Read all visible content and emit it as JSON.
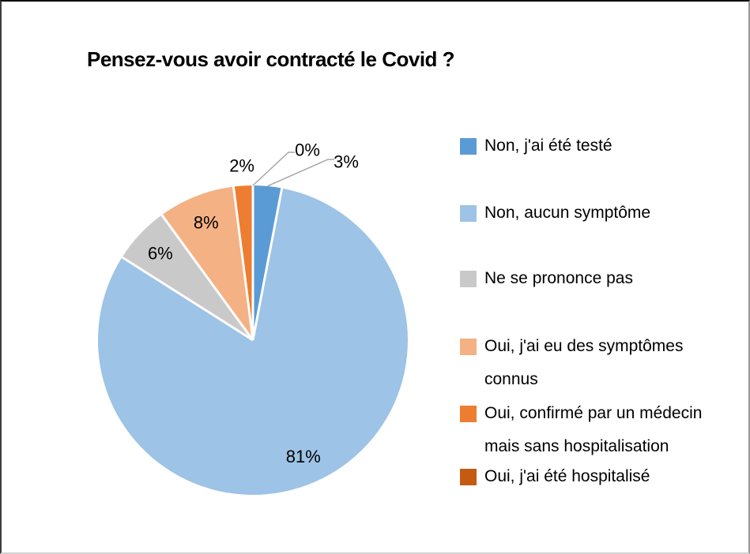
{
  "title": "Pensez-vous avoir contracté le Covid ?",
  "chart_data": {
    "type": "pie",
    "title": "Pensez-vous avoir contracté le Covid ?",
    "start_angle_deg": 0,
    "direction": "clockwise",
    "legend_position": "right",
    "separator_color": "#ffffff",
    "leader_line_color": "#a6a6a6",
    "slices": [
      {
        "label": "Non, j'ai été testé",
        "legend_lines": [
          "Non, j'ai été testé"
        ],
        "value": 3,
        "pct_label": "3%",
        "color": "#5B9BD5",
        "label_placement": "outside-leader"
      },
      {
        "label": "Non, aucun symptôme",
        "legend_lines": [
          "Non, aucun symptôme"
        ],
        "value": 81,
        "pct_label": "81%",
        "color": "#9DC3E6",
        "label_placement": "inside"
      },
      {
        "label": "Ne se prononce pas",
        "legend_lines": [
          "Ne se prononce pas"
        ],
        "value": 6,
        "pct_label": "6%",
        "color": "#C9C9C9",
        "label_placement": "inside"
      },
      {
        "label": "Oui, j'ai eu des symptômes connus",
        "legend_lines": [
          "Oui, j'ai eu des symptômes",
          "connus"
        ],
        "value": 8,
        "pct_label": "8%",
        "color": "#F4B183",
        "label_placement": "inside"
      },
      {
        "label": "Oui, confirmé par un médecin mais sans hospitalisation",
        "legend_lines": [
          "Oui, confirmé par un médecin",
          "mais sans hospitalisation"
        ],
        "value": 2,
        "pct_label": "2%",
        "color": "#ED7D31",
        "label_placement": "outside"
      },
      {
        "label": "Oui, j'ai été hospitalisé",
        "legend_lines": [
          "Oui, j'ai été hospitalisé"
        ],
        "value": 0,
        "pct_label": "0%",
        "color": "#C55A11",
        "label_placement": "outside-leader"
      }
    ]
  }
}
